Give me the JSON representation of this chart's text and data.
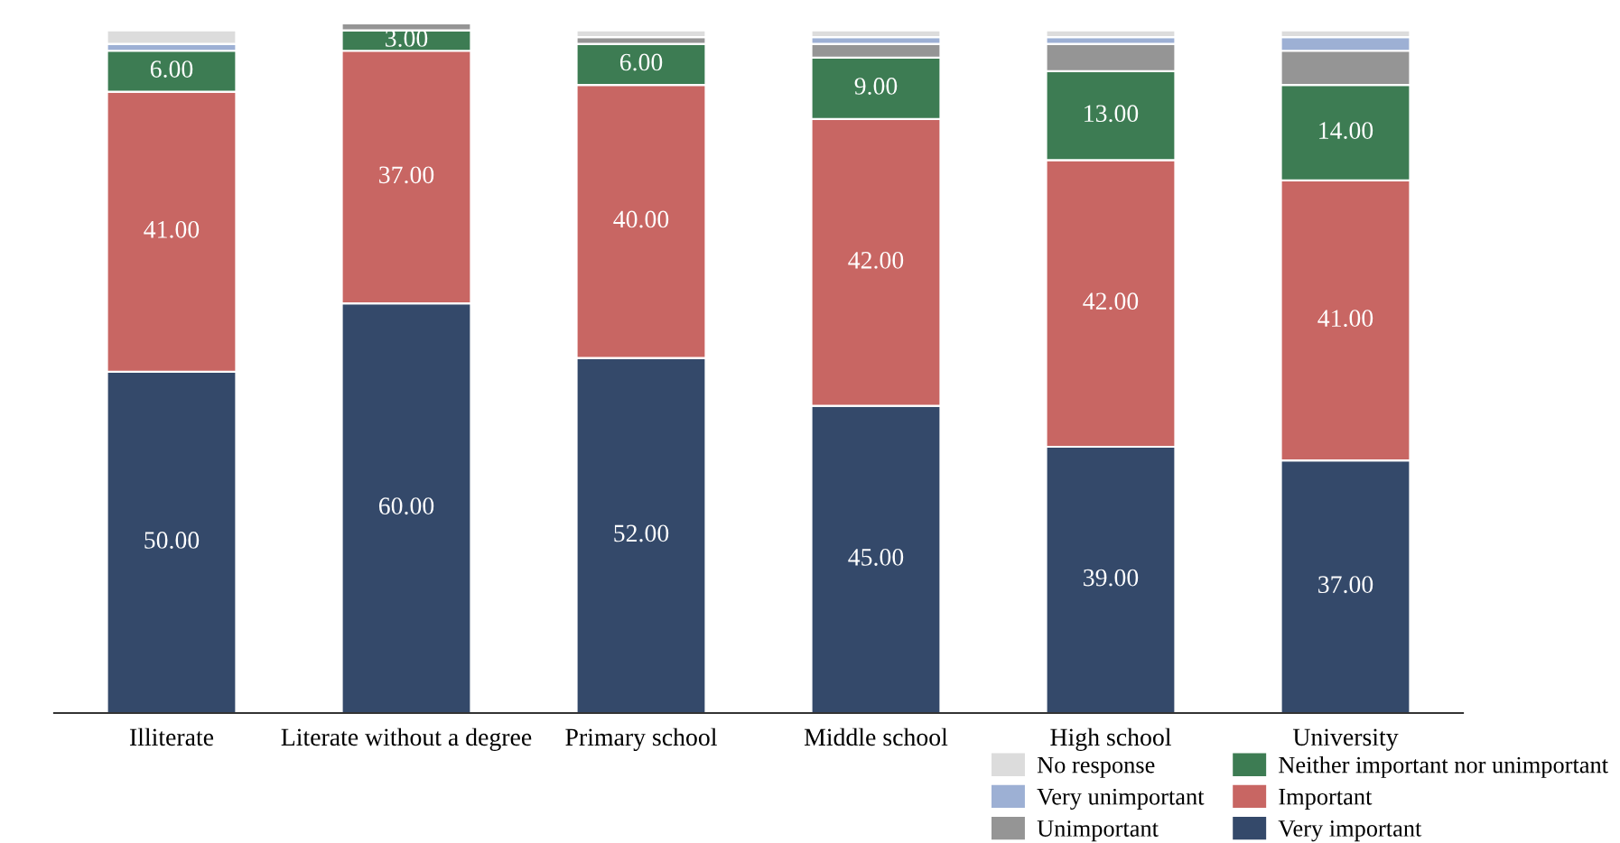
{
  "chart_data": {
    "type": "bar",
    "stacked": true,
    "legend": "bottom right",
    "grid": false,
    "categories": [
      "Illiterate",
      "Literate without a degree",
      "Primary school",
      "Middle school",
      "High school",
      "University"
    ],
    "series": [
      {
        "name": "Very important",
        "color": "#34496a",
        "values": [
          50,
          60,
          52,
          45,
          39,
          37
        ],
        "value_labels": [
          "50.00",
          "60.00",
          "52.00",
          "45.00",
          "39.00",
          "37.00"
        ]
      },
      {
        "name": "Important",
        "color": "#c86663",
        "values": [
          41,
          37,
          40,
          42,
          42,
          41
        ],
        "value_labels": [
          "41.00",
          "37.00",
          "40.00",
          "42.00",
          "42.00",
          "41.00"
        ]
      },
      {
        "name": "Neither important nor unimportant",
        "color": "#3d7c53",
        "values": [
          6,
          3,
          6,
          9,
          13,
          14
        ],
        "value_labels": [
          "6.00",
          "3.00",
          "6.00",
          "9.00",
          "13.00",
          "14.00"
        ]
      },
      {
        "name": "Unimportant",
        "color": "#959595",
        "values": [
          0,
          1,
          1,
          2,
          4,
          5
        ]
      },
      {
        "name": "Very unimportant",
        "color": "#9db0d4",
        "values": [
          1,
          0,
          0,
          1,
          1,
          2
        ]
      },
      {
        "name": "No response",
        "color": "#dcdcdc",
        "values": [
          2,
          0,
          1,
          1,
          1,
          1
        ]
      }
    ]
  }
}
